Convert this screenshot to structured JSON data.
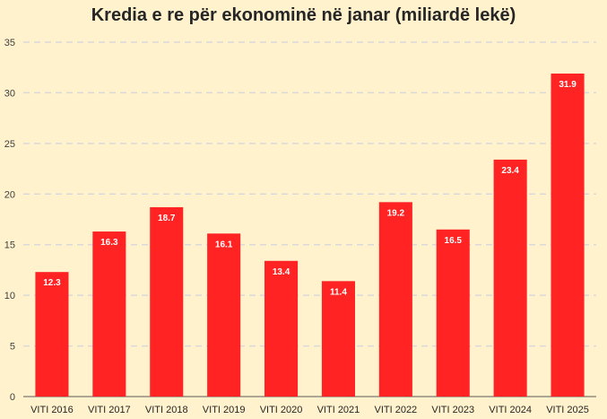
{
  "chart_data": {
    "type": "bar",
    "title": "Kredia e re për ekonominë në janar (miliardë lekë)",
    "xlabel": "",
    "ylabel": "",
    "categories": [
      "VITI 2016",
      "VITI 2017",
      "VITI 2018",
      "VITI 2019",
      "VITI 2020",
      "VITI 2021",
      "VITI 2022",
      "VITI 2023",
      "VITI 2024",
      "VITI 2025"
    ],
    "values": [
      12.3,
      16.3,
      18.7,
      16.1,
      13.4,
      11.4,
      19.2,
      16.5,
      23.4,
      31.9
    ],
    "data_labels": [
      "12.3",
      "16.3",
      "18.7",
      "16.1",
      "13.4",
      "11.4",
      "19.2",
      "16.5",
      "23.4",
      "31.9"
    ],
    "ylim": [
      0,
      35
    ],
    "yticks": [
      0,
      5,
      10,
      15,
      20,
      25,
      30,
      35
    ],
    "grid": true,
    "legend": "none",
    "colors": {
      "bar": "#ff2323",
      "background": "#fff2cc",
      "grid": "#d9d9d9"
    }
  }
}
